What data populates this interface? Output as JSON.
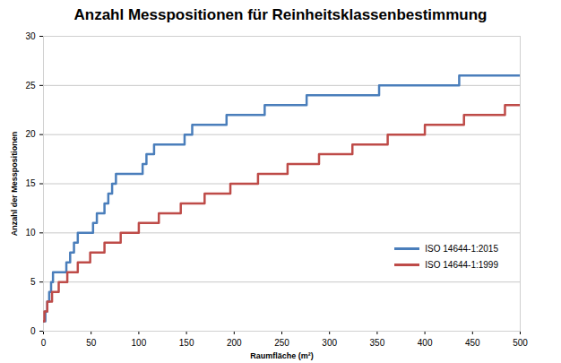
{
  "chart_data": {
    "type": "line",
    "line_style": "step",
    "title": "Anzahl Messpositionen für Reinheitsklassenbestimmung",
    "x_label": "Raumfläche (m²)",
    "y_label": "Anzahl der Messpositionen",
    "xlim": [
      0,
      500
    ],
    "xticks": [
      0,
      50,
      100,
      150,
      200,
      250,
      300,
      350,
      400,
      450,
      500
    ],
    "ylim": [
      0,
      30
    ],
    "yticks": [
      0,
      5,
      10,
      15,
      20,
      25,
      30
    ],
    "grid": true,
    "legend": "right",
    "series": [
      {
        "name": "ISO 14644-1:2015",
        "color": "#4a7ebb",
        "x": [
          0,
          2,
          4,
          6,
          8,
          10,
          24,
          28,
          32,
          36,
          52,
          56,
          64,
          68,
          72,
          76,
          104,
          108,
          116,
          148,
          156,
          192,
          232,
          276,
          352,
          436,
          500
        ],
        "values": [
          1,
          2,
          3,
          4,
          5,
          6,
          7,
          8,
          9,
          10,
          11,
          12,
          13,
          14,
          15,
          16,
          17,
          18,
          19,
          20,
          21,
          22,
          23,
          24,
          25,
          26,
          26
        ]
      },
      {
        "name": "ISO 14644-1:1999",
        "color": "#be4b48",
        "x": [
          0,
          1,
          4,
          9,
          16,
          25,
          36,
          49,
          64,
          81,
          100,
          121,
          144,
          169,
          196,
          225,
          256,
          289,
          324,
          361,
          400,
          441,
          484,
          500
        ],
        "values": [
          1,
          2,
          3,
          4,
          5,
          6,
          7,
          8,
          9,
          10,
          11,
          12,
          13,
          14,
          15,
          16,
          17,
          18,
          19,
          20,
          21,
          22,
          23,
          23
        ]
      }
    ]
  }
}
